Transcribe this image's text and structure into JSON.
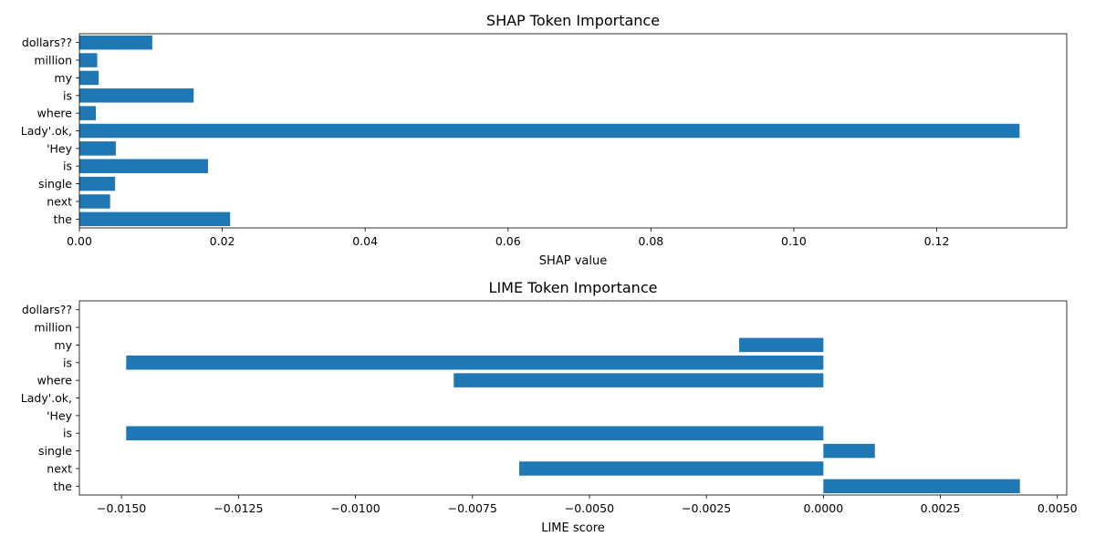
{
  "chart_data": [
    {
      "type": "bar",
      "orientation": "horizontal",
      "title": "SHAP Token Importance",
      "xlabel": "SHAP value",
      "ylabel": "",
      "categories": [
        "dollars??",
        "million",
        "my",
        "is",
        "where",
        "Lady'.ok,",
        "'Hey",
        "is",
        "single",
        "next",
        "the"
      ],
      "values": [
        0.0102,
        0.0025,
        0.0027,
        0.016,
        0.0023,
        0.1316,
        0.0051,
        0.018,
        0.005,
        0.0043,
        0.0211
      ],
      "xlim": [
        0,
        0.1382
      ],
      "xticks": [
        0.0,
        0.02,
        0.04,
        0.06,
        0.08,
        0.1,
        0.12
      ],
      "xtick_labels": [
        "0.00",
        "0.02",
        "0.04",
        "0.06",
        "0.08",
        "0.10",
        "0.12"
      ],
      "bar_color": "#1f77b4",
      "grid": false
    },
    {
      "type": "bar",
      "orientation": "horizontal",
      "title": "LIME Token Importance",
      "xlabel": "LIME score",
      "ylabel": "",
      "categories": [
        "dollars??",
        "million",
        "my",
        "is",
        "where",
        "Lady'.ok,",
        "'Hey",
        "is",
        "single",
        "next",
        "the"
      ],
      "values": [
        0,
        0,
        -0.0018,
        -0.0149,
        -0.0079,
        0,
        0,
        -0.0149,
        0.0011,
        -0.0065,
        0.0042
      ],
      "xlim": [
        -0.0159,
        0.0052
      ],
      "xticks": [
        -0.015,
        -0.0125,
        -0.01,
        -0.0075,
        -0.005,
        -0.0025,
        0.0,
        0.0025,
        0.005
      ],
      "xtick_labels": [
        "−0.0150",
        "−0.0125",
        "−0.0100",
        "−0.0075",
        "−0.0050",
        "−0.0025",
        "0.0000",
        "0.0025",
        "0.0050"
      ],
      "bar_color": "#1f77b4",
      "grid": false
    }
  ]
}
